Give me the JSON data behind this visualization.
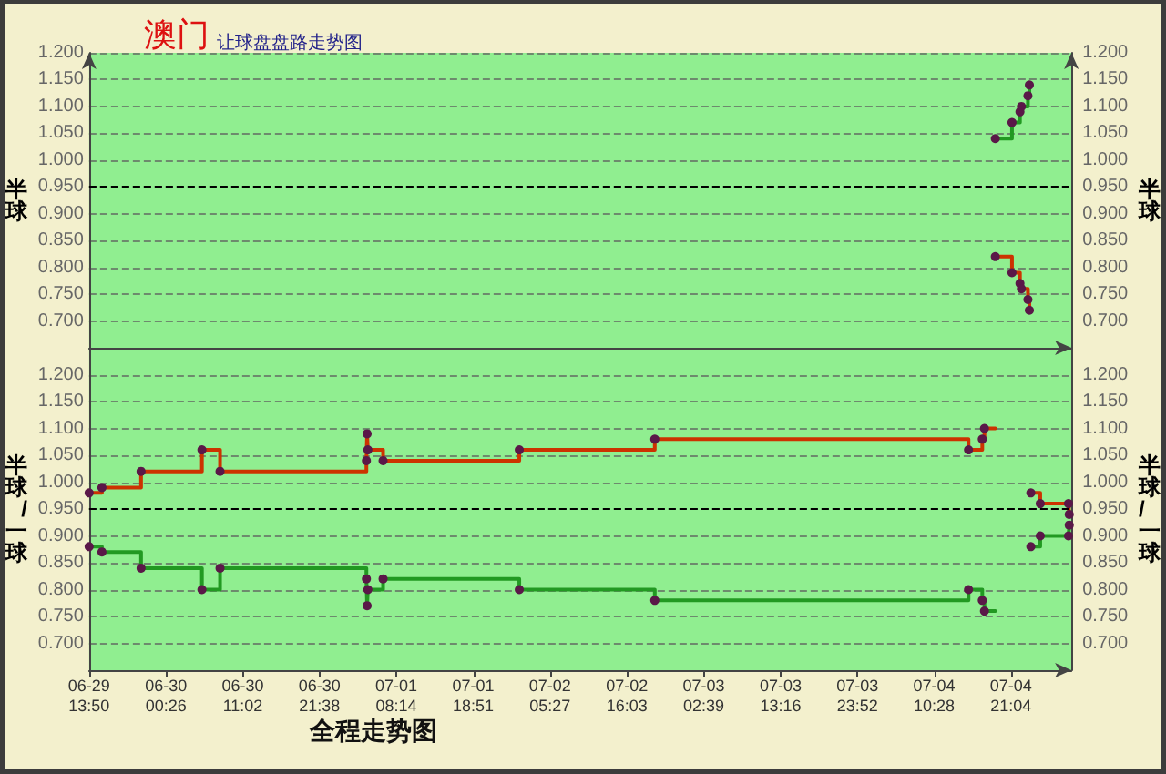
{
  "chart_data": [
    {
      "type": "step",
      "title": "澳门",
      "subtitle": "让球盘盘路走势图",
      "ylabel": "半球",
      "y2label": "半球",
      "x": [
        "--07-04T18:54",
        "--07-04T21:12",
        "--07-04T22:18",
        "--07-04T22:30",
        "--07-04T23:24",
        "--07-04T23:36"
      ],
      "series": [
        {
          "color": "#cc3300",
          "values": [
            0.82,
            0.79,
            0.77,
            0.76,
            0.74,
            0.72
          ]
        },
        {
          "color": "#229922",
          "values": [
            1.04,
            1.07,
            1.09,
            1.1,
            1.12,
            1.14
          ]
        }
      ],
      "xlim": [
        "--06-29T13:50",
        "--07-05T05:24"
      ],
      "ylim": [
        0.65,
        1.2
      ],
      "yticks": [
        {
          "value": 0.7,
          "label": "0.700"
        },
        {
          "value": 0.75,
          "label": "0.750"
        },
        {
          "value": 0.8,
          "label": "0.800"
        },
        {
          "value": 0.85,
          "label": "0.850"
        },
        {
          "value": 0.9,
          "label": "0.900"
        },
        {
          "value": 0.95,
          "label": "0.950"
        },
        {
          "value": 1.0,
          "label": "1.000"
        },
        {
          "value": 1.05,
          "label": "1.050"
        },
        {
          "value": 1.1,
          "label": "1.100"
        },
        {
          "value": 1.15,
          "label": "1.150"
        },
        {
          "value": 1.2,
          "label": "1.200"
        }
      ],
      "y2lim": [
        0.65,
        1.2
      ],
      "y2ticks": [
        {
          "value": 0.7,
          "label": "0.700"
        },
        {
          "value": 0.75,
          "label": "0.750"
        },
        {
          "value": 0.8,
          "label": "0.800"
        },
        {
          "value": 0.85,
          "label": "0.850"
        },
        {
          "value": 0.9,
          "label": "0.900"
        },
        {
          "value": 0.95,
          "label": "0.950"
        },
        {
          "value": 1.0,
          "label": "1.000"
        },
        {
          "value": 1.05,
          "label": "1.050"
        },
        {
          "value": 1.1,
          "label": "1.100"
        },
        {
          "value": 1.15,
          "label": "1.150"
        },
        {
          "value": 1.2,
          "label": "1.200"
        }
      ],
      "grid": "y",
      "marker": "circle",
      "line_style": "solid",
      "tick_labels": "y",
      "ref_lines": [
        {
          "axis": "y",
          "value": 0.95,
          "color": "#000000",
          "line_style": "dashed"
        }
      ]
    },
    {
      "type": "step",
      "xlabel": "全程走势图",
      "ylabel": "半球/一球",
      "y2label": "半球/一球",
      "x": [
        "--06-29T13:50",
        "--06-29T15:36",
        "--06-29T21:00",
        "--06-30T05:24",
        "--06-30T07:54",
        "--07-01T04:06",
        "--07-01T04:12",
        "--07-01T04:18",
        "--07-01T06:24",
        "--07-02T01:12",
        "--07-02T19:54",
        "--07-04T15:12",
        "--07-04T17:06",
        "--07-04T17:24",
        "--07-04T18:54",
        "--07-04T23:48",
        "--07-05T01:06",
        "--07-05T05:00",
        "--07-05T05:06"
      ],
      "series": [
        {
          "color": "#cc3300",
          "values": [
            0.98,
            0.99,
            1.02,
            1.06,
            1.02,
            1.04,
            1.09,
            1.06,
            1.04,
            1.06,
            1.08,
            1.06,
            1.08,
            1.1,
            null,
            0.98,
            0.96,
            0.96,
            0.94
          ]
        },
        {
          "color": "#229922",
          "values": [
            0.88,
            0.87,
            0.84,
            0.8,
            0.84,
            0.82,
            0.77,
            0.8,
            0.82,
            0.8,
            0.78,
            0.8,
            0.78,
            0.76,
            null,
            0.88,
            0.9,
            0.9,
            0.92
          ]
        }
      ],
      "xlim": [
        "--06-29T13:50",
        "--07-05T05:24"
      ],
      "xticks": [
        {
          "value": "--06-29T13:50",
          "label": "06-29\n13:50"
        },
        {
          "value": "--06-30T00:26",
          "label": "06-30\n00:26"
        },
        {
          "value": "--06-30T11:02",
          "label": "06-30\n11:02"
        },
        {
          "value": "--06-30T21:38",
          "label": "06-30\n21:38"
        },
        {
          "value": "--07-01T08:14",
          "label": "07-01\n08:14"
        },
        {
          "value": "--07-01T18:51",
          "label": "07-01\n18:51"
        },
        {
          "value": "--07-02T05:27",
          "label": "07-02\n05:27"
        },
        {
          "value": "--07-02T16:03",
          "label": "07-02\n16:03"
        },
        {
          "value": "--07-03T02:39",
          "label": "07-03\n02:39"
        },
        {
          "value": "--07-03T13:16",
          "label": "07-03\n13:16"
        },
        {
          "value": "--07-03T23:52",
          "label": "07-03\n23:52"
        },
        {
          "value": "--07-04T10:28",
          "label": "07-04\n10:28"
        },
        {
          "value": "--07-04T21:04",
          "label": "07-04\n21:04"
        }
      ],
      "ylim": [
        0.65,
        1.25
      ],
      "yticks": [
        {
          "value": 0.7,
          "label": "0.700"
        },
        {
          "value": 0.75,
          "label": "0.750"
        },
        {
          "value": 0.8,
          "label": "0.800"
        },
        {
          "value": 0.85,
          "label": "0.850"
        },
        {
          "value": 0.9,
          "label": "0.900"
        },
        {
          "value": 0.95,
          "label": "0.950"
        },
        {
          "value": 1.0,
          "label": "1.000"
        },
        {
          "value": 1.05,
          "label": "1.050"
        },
        {
          "value": 1.1,
          "label": "1.100"
        },
        {
          "value": 1.15,
          "label": "1.150"
        },
        {
          "value": 1.2,
          "label": "1.200"
        }
      ],
      "y2lim": [
        0.65,
        1.25
      ],
      "y2ticks": [
        {
          "value": 0.7,
          "label": "0.700"
        },
        {
          "value": 0.75,
          "label": "0.750"
        },
        {
          "value": 0.8,
          "label": "0.800"
        },
        {
          "value": 0.85,
          "label": "0.850"
        },
        {
          "value": 0.9,
          "label": "0.900"
        },
        {
          "value": 0.95,
          "label": "0.950"
        },
        {
          "value": 1.0,
          "label": "1.000"
        },
        {
          "value": 1.05,
          "label": "1.050"
        },
        {
          "value": 1.1,
          "label": "1.100"
        },
        {
          "value": 1.15,
          "label": "1.150"
        },
        {
          "value": 1.2,
          "label": "1.200"
        }
      ],
      "grid": "y",
      "marker": "circle",
      "line_style": "solid",
      "ref_lines": [
        {
          "axis": "y",
          "value": 0.95,
          "color": "#000000",
          "line_style": "dashed"
        }
      ]
    }
  ]
}
